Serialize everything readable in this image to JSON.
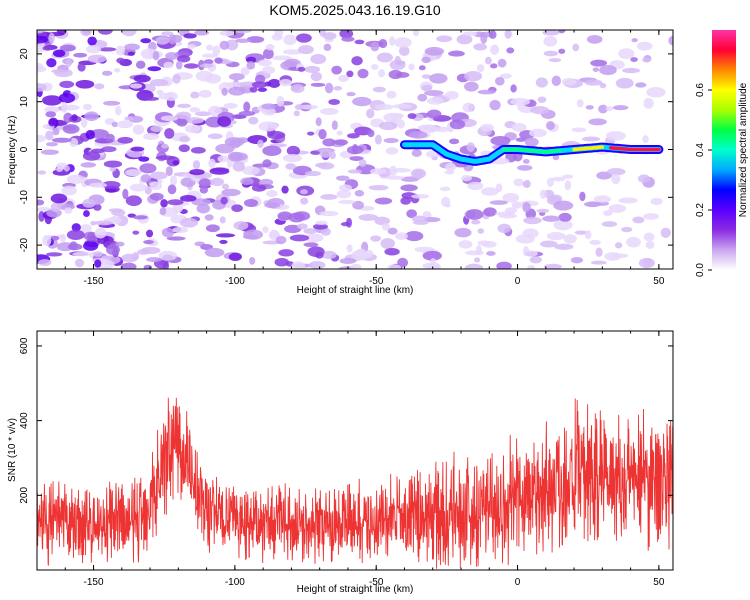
{
  "title": "KOM5.2025.043.16.19.G10",
  "chart_data": [
    {
      "type": "heatmap",
      "xlabel": "Height of straight line (km)",
      "ylabel": "Frequency (Hz)",
      "xlim": [
        -170,
        55
      ],
      "ylim": [
        -25,
        25
      ],
      "xticks": [
        "-150",
        "-100",
        "-50",
        "0",
        "50"
      ],
      "yticks": [
        "-20",
        "-10",
        "0",
        "10",
        "20"
      ],
      "grid": false,
      "colorbar": {
        "label": "Normalized spectral amplitude",
        "range": [
          0.0,
          0.8
        ],
        "ticks": [
          "0.0",
          "0.2",
          "0.4",
          "0.6"
        ],
        "colors": [
          "#ffffff",
          "#c9a6f0",
          "#8b2be2",
          "#5a00ff",
          "#0000ff",
          "#00aaff",
          "#00ffcc",
          "#00ff44",
          "#aaff00",
          "#ffff00",
          "#ff8800",
          "#ff0033",
          "#ff33aa"
        ]
      },
      "ridge": {
        "x": [
          -40,
          -30,
          -25,
          -20,
          -15,
          -10,
          -5,
          0,
          10,
          20,
          30,
          40,
          50
        ],
        "y": [
          1,
          1,
          -1,
          -2,
          -2.5,
          -2,
          0,
          0,
          -0.5,
          0,
          0.5,
          0,
          0
        ]
      }
    },
    {
      "type": "line",
      "xlabel": "Height of straight line (km)",
      "ylabel": "SNR (10 * v/v)",
      "xlim": [
        -170,
        55
      ],
      "ylim": [
        0,
        640
      ],
      "xticks": [
        "-150",
        "-100",
        "-50",
        "0",
        "50"
      ],
      "yticks": [
        "200",
        "400",
        "600"
      ],
      "grid": false,
      "series_color": "#ee3333",
      "envelope": {
        "x": [
          -170,
          -150,
          -135,
          -128,
          -122,
          -118,
          -112,
          -105,
          -90,
          -70,
          -50,
          -35,
          -20,
          -10,
          0,
          10,
          25,
          40,
          55
        ],
        "mean": [
          130,
          120,
          130,
          220,
          360,
          320,
          180,
          140,
          125,
          120,
          130,
          140,
          150,
          170,
          190,
          220,
          260,
          250,
          240
        ],
        "amp": [
          110,
          100,
          120,
          150,
          160,
          150,
          120,
          100,
          95,
          95,
          110,
          130,
          150,
          160,
          180,
          190,
          200,
          190,
          180
        ]
      }
    }
  ]
}
